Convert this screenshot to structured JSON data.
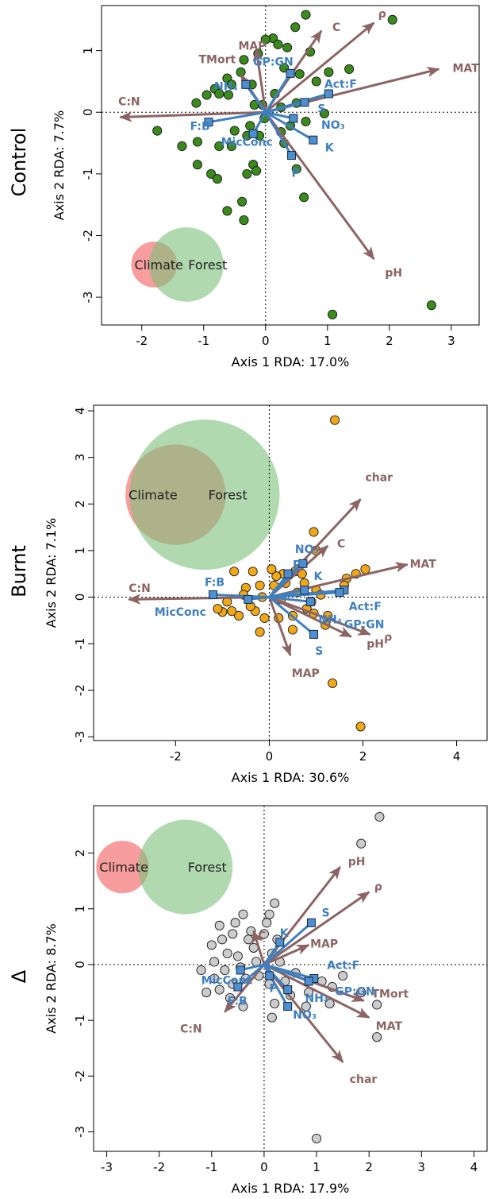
{
  "colors": {
    "env_arrow": "#8c6464",
    "var_arrow": "#3f7fc0",
    "var_square": "#4f8fcf",
    "climate_circle": "#f47c7c",
    "forest_circle": "#7cbf7c",
    "control_points": "#3a8a1c",
    "burnt_points": "#f0a818",
    "delta_points": "#cccccc"
  },
  "chart_data": [
    {
      "type": "scatter",
      "row_label": "Control",
      "xlabel": "Axis 1 RDA: 17.0%",
      "ylabel": "Axis 2 RDA: 7.7%",
      "xlim": [
        -2.65,
        3.45
      ],
      "ylim": [
        -3.45,
        1.73
      ],
      "xticks": [
        -2,
        -1,
        0,
        1,
        2,
        3
      ],
      "yticks": [
        -3,
        -2,
        -1,
        0,
        1
      ],
      "point_color_key": "control_points",
      "venn": {
        "climate": {
          "label": "Climate",
          "cx": -1.8,
          "cy": -2.47,
          "r": 0.37
        },
        "forest": {
          "label": "Forest",
          "cx": -1.28,
          "cy": -2.47,
          "r": 0.6
        }
      },
      "points": [
        [
          1.08,
          -3.28
        ],
        [
          2.68,
          -3.13
        ],
        [
          2.05,
          1.5
        ],
        [
          0.65,
          1.58
        ],
        [
          0.48,
          1.38
        ],
        [
          0.12,
          1.2
        ],
        [
          0.2,
          1.1
        ],
        [
          0.35,
          1.05
        ],
        [
          0.0,
          1.18
        ],
        [
          0.72,
          0.98
        ],
        [
          1.02,
          0.65
        ],
        [
          1.35,
          0.7
        ],
        [
          0.82,
          0.5
        ],
        [
          0.3,
          0.72
        ],
        [
          0.55,
          0.62
        ],
        [
          -0.12,
          0.95
        ],
        [
          -0.35,
          0.85
        ],
        [
          -0.4,
          0.65
        ],
        [
          -0.62,
          0.55
        ],
        [
          -0.82,
          0.38
        ],
        [
          -0.95,
          0.28
        ],
        [
          -1.12,
          0.15
        ],
        [
          -0.6,
          0.28
        ],
        [
          -0.75,
          0.3
        ],
        [
          -0.55,
          0.45
        ],
        [
          -0.22,
          0.45
        ],
        [
          -0.18,
          0.12
        ],
        [
          -0.05,
          0.12
        ],
        [
          0.25,
          0.08
        ],
        [
          0.5,
          0.15
        ],
        [
          0.65,
          -0.15
        ],
        [
          0.95,
          -0.02
        ],
        [
          0.25,
          -0.32
        ],
        [
          0.3,
          -0.5
        ],
        [
          -0.1,
          -0.38
        ],
        [
          -0.3,
          -0.38
        ],
        [
          -0.5,
          -0.3
        ],
        [
          -0.55,
          -0.55
        ],
        [
          -0.75,
          -0.55
        ],
        [
          -1.1,
          -0.48
        ],
        [
          -1.35,
          -0.55
        ],
        [
          -1.75,
          -0.3
        ],
        [
          -1.1,
          -0.85
        ],
        [
          -0.88,
          -1.0
        ],
        [
          -0.78,
          -1.08
        ],
        [
          -0.3,
          -1.0
        ],
        [
          -0.2,
          -0.85
        ],
        [
          -0.15,
          -0.95
        ],
        [
          -0.38,
          -1.45
        ],
        [
          -0.35,
          -1.75
        ],
        [
          -0.62,
          -1.6
        ],
        [
          0.5,
          -0.92
        ],
        [
          0.62,
          -1.38
        ],
        [
          0.4,
          -0.22
        ],
        [
          -0.02,
          -0.1
        ],
        [
          -0.25,
          -0.22
        ],
        [
          0.15,
          0.3
        ]
      ],
      "env_arrows": [
        {
          "label": "C:N",
          "x": -2.35,
          "y": -0.08,
          "lx": -2.38,
          "ly": 0.18
        },
        {
          "label": "MAT",
          "x": 2.8,
          "y": 0.7,
          "lx": 3.02,
          "ly": 0.72
        },
        {
          "label": "ρ",
          "x": 1.75,
          "y": 1.45,
          "lx": 1.82,
          "ly": 1.6
        },
        {
          "label": "C",
          "x": 0.9,
          "y": 1.32,
          "lx": 1.08,
          "ly": 1.38
        },
        {
          "label": "MAP",
          "x": -0.15,
          "y": 1.02,
          "lx": -0.44,
          "ly": 1.08
        },
        {
          "label": "TMort",
          "x": -0.4,
          "y": 0.6,
          "lx": -1.08,
          "ly": 0.86
        },
        {
          "label": "pH",
          "x": 1.75,
          "y": -2.38,
          "lx": 1.93,
          "ly": -2.6
        }
      ],
      "var_arrows": [
        {
          "label": "GP:GN",
          "x": 0.4,
          "y": 0.63,
          "lx": -0.2,
          "ly": 0.82
        },
        {
          "label": "NH₄",
          "x": -0.32,
          "y": 0.45,
          "lx": -0.83,
          "ly": 0.42
        },
        {
          "label": "Act:F",
          "x": 1.02,
          "y": 0.3,
          "lx": 0.95,
          "ly": 0.46
        },
        {
          "label": "S",
          "x": 0.63,
          "y": 0.16,
          "lx": 0.84,
          "ly": 0.06
        },
        {
          "label": "NO₃",
          "x": 0.45,
          "y": -0.1,
          "lx": 0.9,
          "ly": -0.2
        },
        {
          "label": "K",
          "x": 0.77,
          "y": -0.45,
          "lx": 0.96,
          "ly": -0.57
        },
        {
          "label": "P",
          "x": 0.42,
          "y": -0.7,
          "lx": 0.42,
          "ly": -0.98
        },
        {
          "label": "MicConc",
          "x": -0.2,
          "y": -0.35,
          "lx": -0.72,
          "ly": -0.48
        },
        {
          "label": "F:B",
          "x": -0.92,
          "y": -0.16,
          "lx": -1.22,
          "ly": -0.22
        }
      ]
    },
    {
      "type": "scatter",
      "row_label": "Burnt",
      "xlabel": "Axis 1 RDA: 30.6%",
      "ylabel": "Axis 2 RDA: 7.1%",
      "xlim": [
        -3.75,
        4.65
      ],
      "ylim": [
        -3.08,
        4.12
      ],
      "xticks": [
        -2,
        0,
        2,
        4
      ],
      "yticks": [
        -3,
        -2,
        -1,
        0,
        1,
        2,
        3,
        4
      ],
      "point_color_key": "burnt_points",
      "venn": {
        "climate": {
          "label": "Climate",
          "cx": -2.0,
          "cy": 2.2,
          "r": 1.07
        },
        "forest": {
          "label": "Forest",
          "cx": -1.38,
          "cy": 2.2,
          "r": 1.6
        }
      },
      "points": [
        [
          1.4,
          3.8
        ],
        [
          1.95,
          -2.78
        ],
        [
          1.35,
          -1.85
        ],
        [
          2.05,
          0.6
        ],
        [
          1.85,
          0.5
        ],
        [
          1.65,
          0.4
        ],
        [
          1.6,
          0.25
        ],
        [
          0.95,
          1.4
        ],
        [
          1.0,
          1.0
        ],
        [
          0.55,
          0.55
        ],
        [
          0.7,
          0.5
        ],
        [
          0.75,
          0.3
        ],
        [
          0.3,
          0.5
        ],
        [
          0.15,
          0.45
        ],
        [
          0.5,
          -0.4
        ],
        [
          0.2,
          -0.45
        ],
        [
          -0.1,
          -0.45
        ],
        [
          -0.3,
          -0.3
        ],
        [
          -0.4,
          -0.2
        ],
        [
          -0.65,
          -0.4
        ],
        [
          -0.8,
          -0.3
        ],
        [
          -1.0,
          -0.32
        ],
        [
          -1.1,
          -0.25
        ],
        [
          -0.5,
          0.2
        ],
        [
          -0.2,
          0.25
        ],
        [
          0.1,
          0.25
        ],
        [
          0.35,
          0.3
        ],
        [
          1.0,
          0.15
        ],
        [
          1.1,
          0.05
        ],
        [
          0.9,
          -0.1
        ],
        [
          1.25,
          -0.4
        ],
        [
          1.2,
          -0.6
        ],
        [
          0.8,
          -0.25
        ],
        [
          -0.75,
          0.55
        ],
        [
          -0.35,
          0.55
        ],
        [
          0.05,
          0.6
        ],
        [
          -0.15,
          0.0
        ],
        [
          0.25,
          -0.05
        ],
        [
          -0.55,
          0.05
        ],
        [
          -0.9,
          -0.1
        ],
        [
          0.6,
          0.1
        ],
        [
          0.95,
          -0.35
        ],
        [
          0.5,
          -0.7
        ],
        [
          -0.2,
          -0.75
        ]
      ],
      "env_arrows": [
        {
          "label": "C:N",
          "x": -3.0,
          "y": -0.05,
          "lx": -3.0,
          "ly": 0.2
        },
        {
          "label": "MAT",
          "x": 2.95,
          "y": 0.7,
          "lx": 3.0,
          "ly": 0.72
        },
        {
          "label": "ρ",
          "x": 2.15,
          "y": -0.8,
          "lx": 2.45,
          "ly": -0.85
        },
        {
          "label": "char",
          "x": 1.95,
          "y": 2.1,
          "lx": 2.05,
          "ly": 2.58
        },
        {
          "label": "C",
          "x": 1.25,
          "y": 1.1,
          "lx": 1.45,
          "ly": 1.15
        },
        {
          "label": "pH",
          "x": 1.75,
          "y": -0.85,
          "lx": 2.08,
          "ly": -1.0
        },
        {
          "label": "MAP",
          "x": 0.45,
          "y": -1.25,
          "lx": 0.48,
          "ly": -1.63
        }
      ],
      "var_arrows": [
        {
          "label": "NO₃",
          "x": 0.4,
          "y": 0.5,
          "lx": 0.55,
          "ly": 1.03
        },
        {
          "label": "P",
          "x": 0.72,
          "y": 0.72,
          "lx": 0.5,
          "ly": 0.7
        },
        {
          "label": "K",
          "x": 0.75,
          "y": 0.15,
          "lx": 0.95,
          "ly": 0.45
        },
        {
          "label": "Act:F",
          "x": 1.6,
          "y": 0.15,
          "lx": 1.7,
          "ly": -0.2
        },
        {
          "label": "GP:GN",
          "x": 1.5,
          "y": 0.1,
          "lx": 1.6,
          "ly": -0.58
        },
        {
          "label": "NH₄",
          "x": 0.88,
          "y": -0.1,
          "lx": 1.05,
          "ly": -0.48
        },
        {
          "label": "S",
          "x": 0.95,
          "y": -0.8,
          "lx": 0.98,
          "ly": -1.15
        },
        {
          "label": "F:B",
          "x": -1.2,
          "y": 0.05,
          "lx": -1.38,
          "ly": 0.32
        },
        {
          "label": "MicConc",
          "x": -0.45,
          "y": -0.05,
          "lx": -2.45,
          "ly": -0.32
        }
      ]
    },
    {
      "type": "scatter",
      "row_label": "Δ",
      "xlabel": "Axis 1 RDA: 17.9%",
      "ylabel": "Axis 2 RDA: 8.7%",
      "xlim": [
        -3.25,
        4.25
      ],
      "ylim": [
        -3.35,
        2.85
      ],
      "xticks": [
        -3,
        -2,
        -1,
        0,
        1,
        2,
        3,
        4
      ],
      "yticks": [
        -3,
        -2,
        -1,
        0,
        1,
        2
      ],
      "point_color_key": "delta_points",
      "venn": {
        "climate": {
          "label": "Climate",
          "cx": -2.7,
          "cy": 1.75,
          "r": 0.5
        },
        "forest": {
          "label": "Forest",
          "cx": -1.5,
          "cy": 1.75,
          "r": 0.9
        }
      },
      "points": [
        [
          2.2,
          2.65
        ],
        [
          1.85,
          2.17
        ],
        [
          1.0,
          -3.12
        ],
        [
          2.15,
          -0.72
        ],
        [
          2.15,
          -1.3
        ],
        [
          1.85,
          -0.5
        ],
        [
          1.5,
          -0.2
        ],
        [
          1.3,
          -0.4
        ],
        [
          1.1,
          -0.3
        ],
        [
          1.25,
          -0.7
        ],
        [
          0.85,
          -0.5
        ],
        [
          0.2,
          1.1
        ],
        [
          0.1,
          0.9
        ],
        [
          -0.4,
          0.9
        ],
        [
          -0.25,
          0.6
        ],
        [
          -0.6,
          0.55
        ],
        [
          -0.8,
          0.45
        ],
        [
          -1.0,
          0.35
        ],
        [
          -0.7,
          0.2
        ],
        [
          -0.5,
          0.15
        ],
        [
          -0.2,
          0.3
        ],
        [
          0.0,
          0.55
        ],
        [
          0.15,
          0.2
        ],
        [
          -0.15,
          0.05
        ],
        [
          -0.45,
          -0.05
        ],
        [
          -0.75,
          -0.1
        ],
        [
          -0.95,
          -0.25
        ],
        [
          -1.1,
          -0.5
        ],
        [
          -0.85,
          -0.45
        ],
        [
          -0.6,
          -0.35
        ],
        [
          -0.35,
          -0.25
        ],
        [
          -0.1,
          -0.2
        ],
        [
          0.1,
          -0.35
        ],
        [
          0.2,
          -0.7
        ],
        [
          0.15,
          -0.95
        ],
        [
          0.5,
          -0.55
        ],
        [
          0.4,
          -0.3
        ],
        [
          0.3,
          0.05
        ],
        [
          -0.3,
          0.45
        ],
        [
          -0.55,
          0.75
        ],
        [
          -0.85,
          0.7
        ],
        [
          -0.95,
          0.05
        ],
        [
          -1.2,
          -0.1
        ],
        [
          0.05,
          0.75
        ],
        [
          0.25,
          0.45
        ],
        [
          -0.65,
          -0.6
        ],
        [
          -0.4,
          -0.75
        ],
        [
          0.6,
          -0.15
        ],
        [
          0.8,
          -0.75
        ]
      ],
      "env_arrows": [
        {
          "label": "C:N",
          "x": -0.75,
          "y": -0.85,
          "lx": -1.6,
          "ly": -1.15
        },
        {
          "label": "MAT",
          "x": 2.0,
          "y": -0.95,
          "lx": 2.13,
          "ly": -1.1
        },
        {
          "label": "TMort",
          "x": 1.9,
          "y": -0.65,
          "lx": 2.05,
          "ly": -0.52
        },
        {
          "label": "char",
          "x": 1.5,
          "y": -1.75,
          "lx": 1.63,
          "ly": -2.05
        },
        {
          "label": "pH",
          "x": 1.45,
          "y": 1.75,
          "lx": 1.6,
          "ly": 1.85
        },
        {
          "label": "ρ",
          "x": 2.0,
          "y": 1.3,
          "lx": 2.1,
          "ly": 1.4
        },
        {
          "label": "MAP",
          "x": 0.85,
          "y": 0.35,
          "lx": 0.88,
          "ly": 0.38
        },
        {
          "label": "C",
          "x": -0.2,
          "y": 0.6,
          "lx": -0.12,
          "ly": 0.52
        }
      ],
      "var_arrows": [
        {
          "label": "K",
          "x": 0.3,
          "y": 0.4,
          "lx": 0.3,
          "ly": 0.57
        },
        {
          "label": "S",
          "x": 0.9,
          "y": 0.75,
          "lx": 1.1,
          "ly": 0.93
        },
        {
          "label": "Act:F",
          "x": 0.95,
          "y": -0.25,
          "lx": 1.2,
          "ly": -0.01
        },
        {
          "label": "GP:GN",
          "x": 0.85,
          "y": -0.3,
          "lx": 1.35,
          "ly": -0.48
        },
        {
          "label": "NH₄",
          "x": 0.45,
          "y": -0.45,
          "lx": 0.78,
          "ly": -0.6
        },
        {
          "label": "NO₃",
          "x": 0.45,
          "y": -0.75,
          "lx": 0.55,
          "ly": -0.9
        },
        {
          "label": "P",
          "x": 0.1,
          "y": -0.2,
          "lx": 0.1,
          "ly": -0.42
        },
        {
          "label": "MicConc",
          "x": -0.45,
          "y": -0.1,
          "lx": -1.2,
          "ly": -0.28
        },
        {
          "label": "F:B",
          "x": -0.5,
          "y": -0.4,
          "lx": -0.7,
          "ly": -0.65
        }
      ]
    }
  ]
}
